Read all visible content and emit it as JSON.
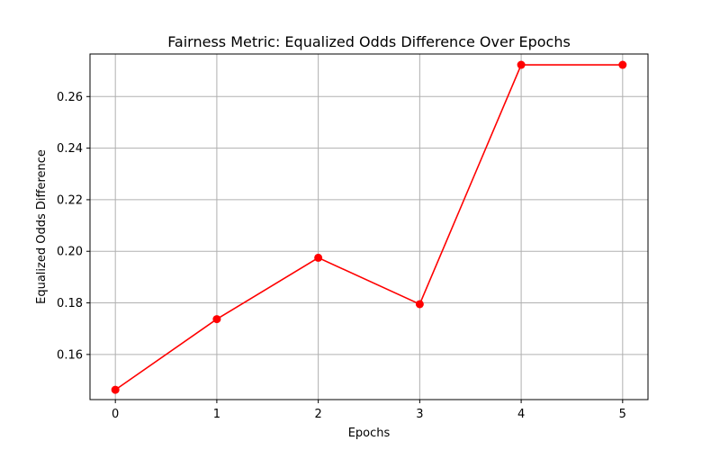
{
  "chart_data": {
    "type": "line",
    "title": "Fairness Metric: Equalized Odds Difference Over Epochs",
    "xlabel": "Epochs",
    "ylabel": "Equalized Odds Difference",
    "x": [
      0,
      1,
      2,
      3,
      4,
      5
    ],
    "series": [
      {
        "values": [
          0.1463,
          0.1737,
          0.1975,
          0.1795,
          0.2723,
          0.2723
        ],
        "color": "#ff0000",
        "marker": "circle"
      }
    ],
    "xticks": [
      "0",
      "1",
      "2",
      "3",
      "4",
      "5"
    ],
    "yticks": [
      "0.16",
      "0.18",
      "0.20",
      "0.22",
      "0.24",
      "0.26"
    ],
    "xlim": [
      -0.25,
      5.25
    ],
    "ylim": [
      0.1425,
      0.2765
    ],
    "grid": true,
    "legend": "none"
  }
}
